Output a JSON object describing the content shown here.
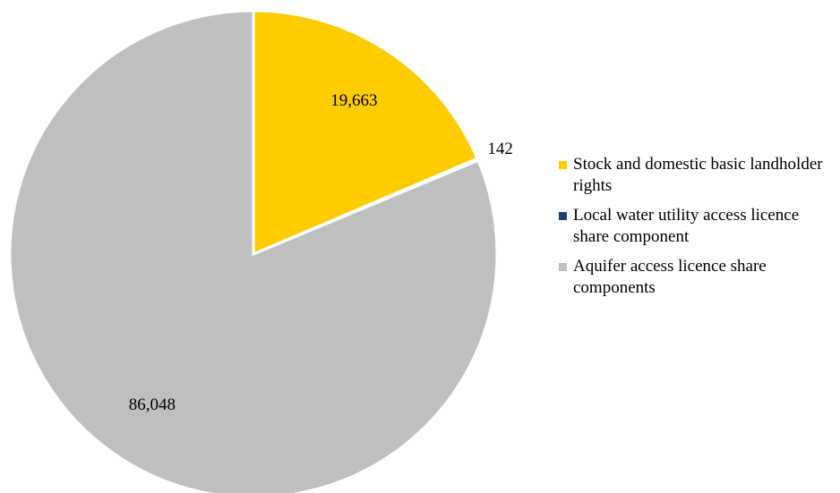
{
  "chart_data": {
    "type": "pie",
    "categories": [
      "Stock and domestic basic landholder rights",
      "Local water utility access licence share component",
      "Aquifer access licence share components"
    ],
    "values": [
      19663,
      142,
      86048
    ],
    "value_labels": [
      "19,663",
      "142",
      "86,048"
    ],
    "colors": [
      "#ffcc00",
      "#1f3d6e",
      "#bfbfbf"
    ],
    "legend": "right"
  }
}
